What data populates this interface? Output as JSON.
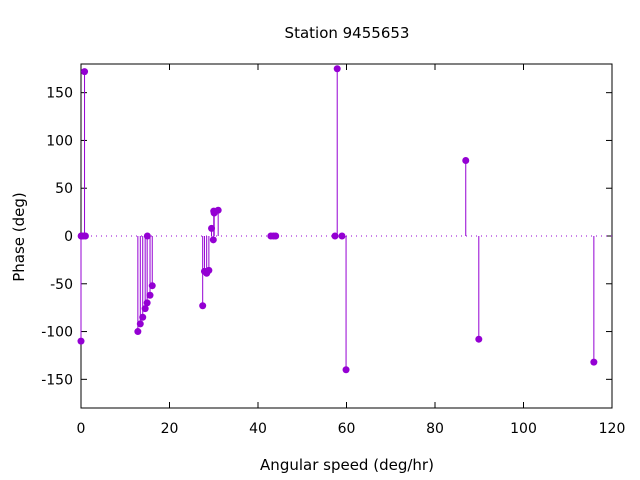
{
  "chart_data": {
    "type": "scatter",
    "style": "impulses-with-points",
    "title": "Station 9455653",
    "xlabel": "Angular speed (deg/hr)",
    "ylabel": "Phase (deg)",
    "xlim": [
      0,
      120
    ],
    "ylim": [
      -180,
      180
    ],
    "xticks": [
      0,
      20,
      40,
      60,
      80,
      100,
      120
    ],
    "yticks": [
      -150,
      -100,
      -50,
      0,
      50,
      100,
      150
    ],
    "zero_line": true,
    "grid": false,
    "color": "#9400d3",
    "series": [
      {
        "x": [
          0.0,
          0.04,
          0.08,
          0.5,
          0.8,
          1.0,
          12.85,
          13.4,
          13.95,
          14.5,
          14.95,
          15.0,
          15.6,
          16.1,
          27.5,
          27.9,
          28.4,
          28.9,
          29.5,
          29.9,
          30.0,
          30.1,
          31.0,
          42.9,
          43.5,
          44.0,
          57.4,
          57.9,
          58.98,
          59.9,
          86.95,
          89.9,
          115.9
        ],
        "y": [
          -110,
          0,
          0,
          0,
          172,
          0,
          -100,
          -92,
          -85,
          -76,
          -70,
          0,
          -62,
          -52,
          -73,
          -37,
          -39,
          -36,
          8,
          -4,
          26,
          24,
          27,
          0,
          0,
          0,
          0,
          175,
          0,
          -140,
          79,
          -108,
          -132
        ]
      }
    ]
  }
}
